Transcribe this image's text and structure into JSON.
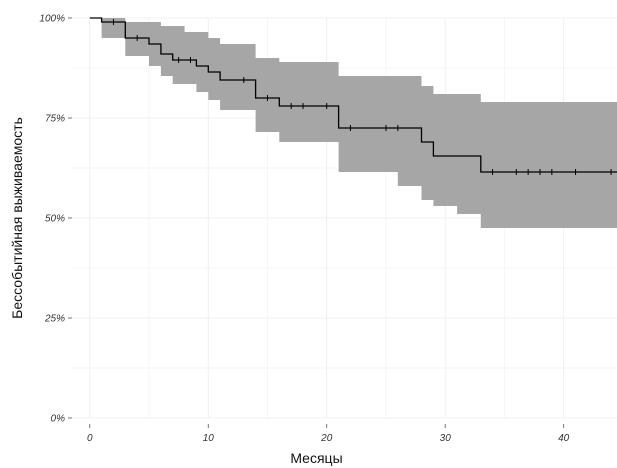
{
  "chart_data": {
    "type": "line",
    "title": "",
    "xlabel": "Месяцы",
    "ylabel": "Бессобытийная выживаемость",
    "xlim": [
      -1.5,
      44.5
    ],
    "ylim": [
      0,
      1
    ],
    "x_ticks": [
      0,
      10,
      20,
      30,
      40
    ],
    "x_tick_labels": [
      "0",
      "10",
      "20",
      "30",
      "40"
    ],
    "y_ticks": [
      0,
      0.25,
      0.5,
      0.75,
      1.0
    ],
    "y_tick_labels": [
      "0%",
      "25%",
      "50%",
      "75%",
      "100%"
    ],
    "grid": true,
    "legend": "none",
    "colors": {
      "band": "#a6a6a6",
      "line": "#000000",
      "grid": "#ececec"
    },
    "survival_steps": [
      {
        "x": 0,
        "y": 1.0
      },
      {
        "x": 1,
        "y": 0.99
      },
      {
        "x": 3,
        "y": 0.95
      },
      {
        "x": 5,
        "y": 0.935
      },
      {
        "x": 6,
        "y": 0.91
      },
      {
        "x": 7,
        "y": 0.895
      },
      {
        "x": 9,
        "y": 0.88
      },
      {
        "x": 10,
        "y": 0.865
      },
      {
        "x": 11,
        "y": 0.845
      },
      {
        "x": 14,
        "y": 0.8
      },
      {
        "x": 16,
        "y": 0.78
      },
      {
        "x": 21,
        "y": 0.725
      },
      {
        "x": 28,
        "y": 0.69
      },
      {
        "x": 29,
        "y": 0.655
      },
      {
        "x": 33,
        "y": 0.615
      }
    ],
    "x_end": 44.5,
    "ci_upper": [
      {
        "x": 0,
        "y": 1.0
      },
      {
        "x": 3,
        "y": 0.99
      },
      {
        "x": 6,
        "y": 0.98
      },
      {
        "x": 8,
        "y": 0.965
      },
      {
        "x": 10,
        "y": 0.95
      },
      {
        "x": 11,
        "y": 0.935
      },
      {
        "x": 14,
        "y": 0.9
      },
      {
        "x": 16,
        "y": 0.89
      },
      {
        "x": 21,
        "y": 0.855
      },
      {
        "x": 28,
        "y": 0.83
      },
      {
        "x": 29,
        "y": 0.81
      },
      {
        "x": 33,
        "y": 0.79
      }
    ],
    "ci_lower": [
      {
        "x": 0,
        "y": 1.0
      },
      {
        "x": 1,
        "y": 0.95
      },
      {
        "x": 3,
        "y": 0.905
      },
      {
        "x": 5,
        "y": 0.88
      },
      {
        "x": 6,
        "y": 0.855
      },
      {
        "x": 7,
        "y": 0.835
      },
      {
        "x": 9,
        "y": 0.815
      },
      {
        "x": 10,
        "y": 0.795
      },
      {
        "x": 11,
        "y": 0.77
      },
      {
        "x": 14,
        "y": 0.715
      },
      {
        "x": 16,
        "y": 0.69
      },
      {
        "x": 21,
        "y": 0.615
      },
      {
        "x": 26,
        "y": 0.58
      },
      {
        "x": 28,
        "y": 0.545
      },
      {
        "x": 29,
        "y": 0.53
      },
      {
        "x": 31,
        "y": 0.51
      },
      {
        "x": 33,
        "y": 0.475
      }
    ],
    "censor_marks": [
      {
        "x": 2,
        "y": 0.99
      },
      {
        "x": 4,
        "y": 0.95
      },
      {
        "x": 7.5,
        "y": 0.895
      },
      {
        "x": 8.5,
        "y": 0.895
      },
      {
        "x": 13,
        "y": 0.845
      },
      {
        "x": 15,
        "y": 0.8
      },
      {
        "x": 17,
        "y": 0.78
      },
      {
        "x": 18,
        "y": 0.78
      },
      {
        "x": 20,
        "y": 0.78
      },
      {
        "x": 22,
        "y": 0.725
      },
      {
        "x": 25,
        "y": 0.725
      },
      {
        "x": 26,
        "y": 0.725
      },
      {
        "x": 34,
        "y": 0.615
      },
      {
        "x": 36,
        "y": 0.615
      },
      {
        "x": 37,
        "y": 0.615
      },
      {
        "x": 38,
        "y": 0.615
      },
      {
        "x": 39,
        "y": 0.615
      },
      {
        "x": 41,
        "y": 0.615
      },
      {
        "x": 44,
        "y": 0.615
      }
    ]
  }
}
